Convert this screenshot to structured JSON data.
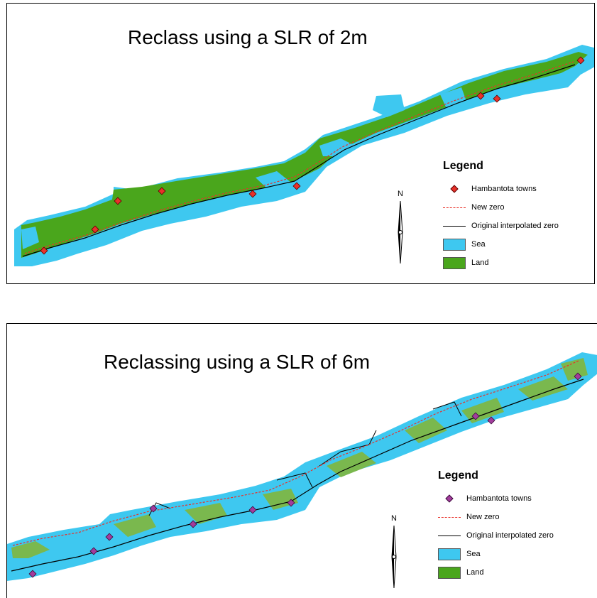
{
  "colors": {
    "sea": "#3ec8f0",
    "land": "#4aa61c",
    "land_mixed": "#7ab84e",
    "new_zero": "#e8322a",
    "interpolated_zero": "#000000"
  },
  "maps": [
    {
      "title": "Reclass using a SLR of 2m",
      "town_color": "#e8322a",
      "legend": {
        "title": "Legend",
        "towns": "Hambantota towns",
        "new_zero": "New zero",
        "interpolated_zero": "Original interpolated zero",
        "sea": "Sea",
        "land": "Land"
      },
      "north": "N"
    },
    {
      "title": "Reclassing using a SLR of 6m",
      "town_color": "#a23c9c",
      "legend": {
        "title": "Legend",
        "towns": "Hambantota towns",
        "new_zero": "New zero",
        "interpolated_zero": "Original interpolated zero",
        "sea": "Sea",
        "land": "Land"
      },
      "north": "N"
    }
  ]
}
